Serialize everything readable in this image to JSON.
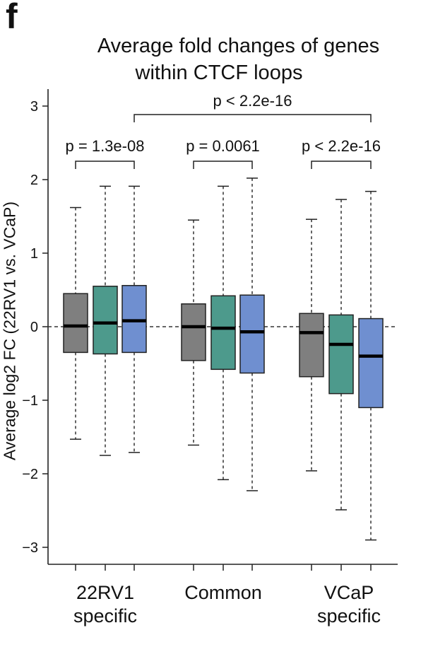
{
  "panel_label": "f",
  "chart_data": {
    "type": "box",
    "title": [
      "Average fold changes of genes",
      "within CTCF loops"
    ],
    "ylabel": "Average log2 FC (22RV1 vs. VCaP)",
    "ylim": [
      -3.2,
      3.2
    ],
    "yticks": [
      3,
      2,
      1,
      0,
      -1,
      -2,
      -3
    ],
    "ytick_labels": [
      "3",
      "2",
      "1",
      "0",
      "−1",
      "−2",
      "−3"
    ],
    "reference_line": 0,
    "groups": [
      {
        "label_lines": [
          "22RV1",
          "specific"
        ]
      },
      {
        "label_lines": [
          "Common"
        ]
      },
      {
        "label_lines": [
          "VCaP",
          "specific"
        ]
      }
    ],
    "box_colors": [
      "#7f7f7f",
      "#4d9a8c",
      "#6f8fd0"
    ],
    "boxes": [
      {
        "group": 0,
        "color_index": 0,
        "whisker_low": -1.53,
        "q1": -0.35,
        "median": 0.01,
        "q3": 0.45,
        "whisker_high": 1.62
      },
      {
        "group": 0,
        "color_index": 1,
        "whisker_low": -1.75,
        "q1": -0.37,
        "median": 0.05,
        "q3": 0.55,
        "whisker_high": 1.91
      },
      {
        "group": 0,
        "color_index": 2,
        "whisker_low": -1.71,
        "q1": -0.35,
        "median": 0.08,
        "q3": 0.56,
        "whisker_high": 1.91
      },
      {
        "group": 1,
        "color_index": 0,
        "whisker_low": -1.61,
        "q1": -0.46,
        "median": 0.0,
        "q3": 0.31,
        "whisker_high": 1.45
      },
      {
        "group": 1,
        "color_index": 1,
        "whisker_low": -2.08,
        "q1": -0.58,
        "median": -0.02,
        "q3": 0.42,
        "whisker_high": 1.91
      },
      {
        "group": 1,
        "color_index": 2,
        "whisker_low": -2.23,
        "q1": -0.63,
        "median": -0.07,
        "q3": 0.43,
        "whisker_high": 2.02
      },
      {
        "group": 2,
        "color_index": 0,
        "whisker_low": -1.96,
        "q1": -0.68,
        "median": -0.08,
        "q3": 0.18,
        "whisker_high": 1.46
      },
      {
        "group": 2,
        "color_index": 1,
        "whisker_low": -2.49,
        "q1": -0.91,
        "median": -0.24,
        "q3": 0.16,
        "whisker_high": 1.73
      },
      {
        "group": 2,
        "color_index": 2,
        "whisker_low": -2.9,
        "q1": -1.1,
        "median": -0.4,
        "q3": 0.11,
        "whisker_high": 1.84
      }
    ],
    "comparisons": [
      {
        "label": "p = 1.3e-08",
        "from_box": 0,
        "to_box": 2
      },
      {
        "label": "p = 0.0061",
        "from_box": 3,
        "to_box": 5
      },
      {
        "label": "p < 2.2e-16",
        "from_box": 6,
        "to_box": 8
      },
      {
        "label": "p < 2.2e-16",
        "from_box": 2,
        "to_box": 8
      }
    ]
  }
}
